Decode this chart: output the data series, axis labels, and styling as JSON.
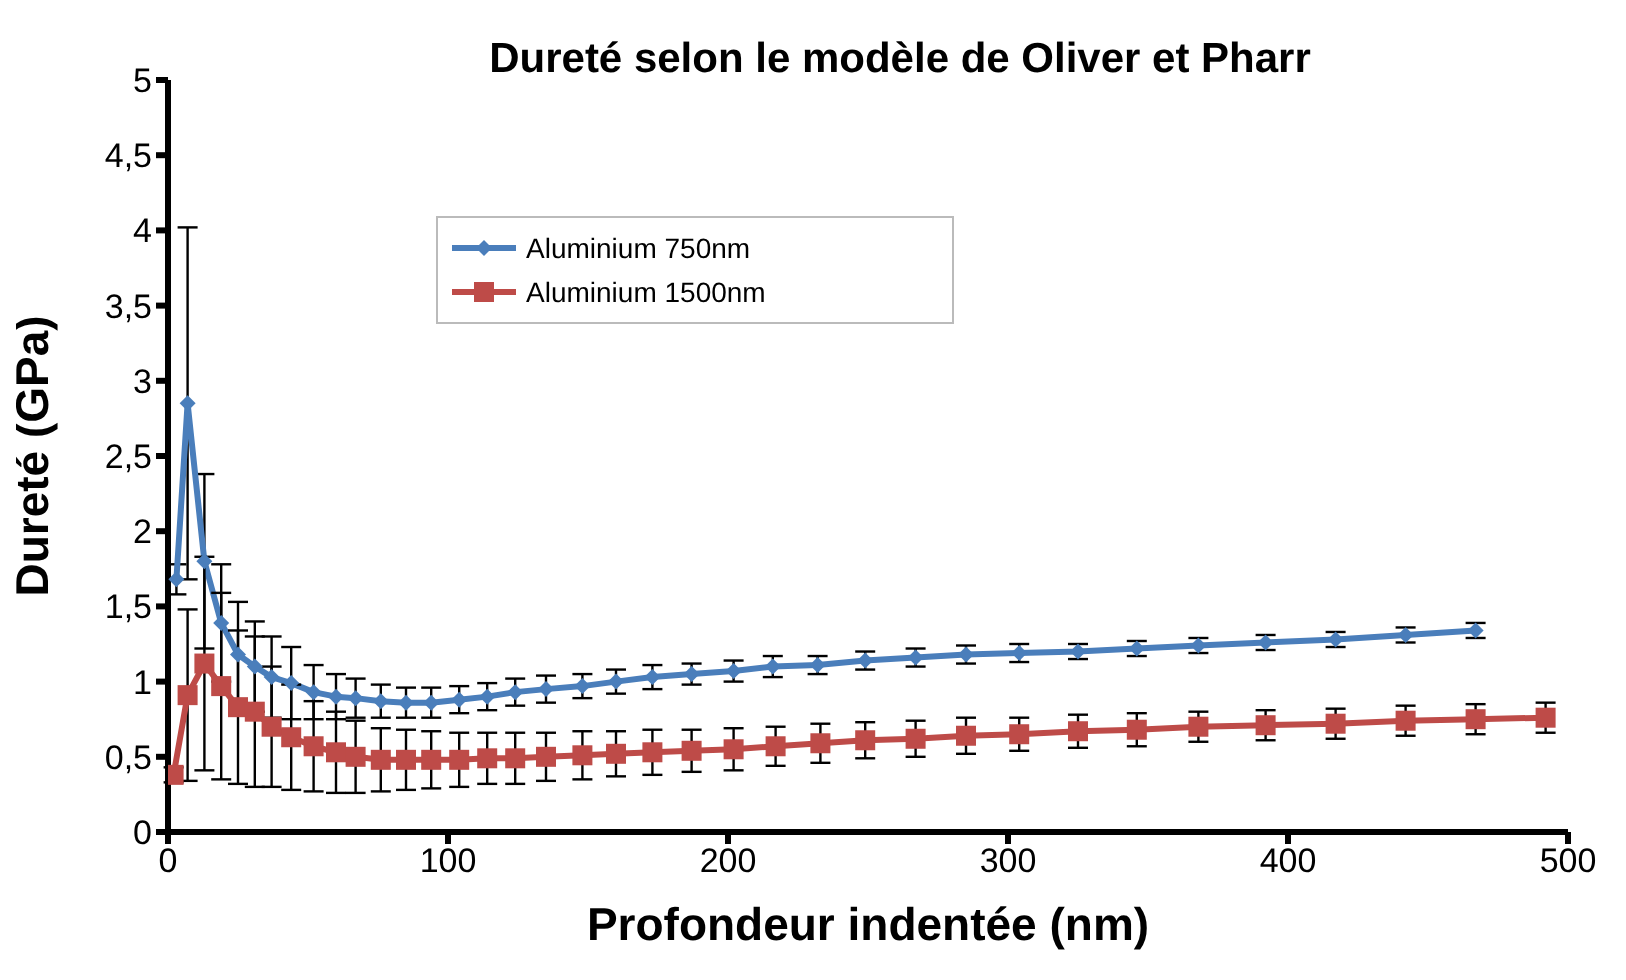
{
  "chart_data": {
    "type": "line",
    "title": "Dureté selon le modèle de Oliver et Pharr",
    "xlabel": "Profondeur indentée (nm)",
    "ylabel": "Dureté (GPa)",
    "xlim": [
      0,
      500
    ],
    "xticks": [
      0,
      100,
      200,
      300,
      400,
      500
    ],
    "ylim": [
      0,
      5
    ],
    "yticks": [
      0,
      {
        "value": 0.5,
        "label": "0,5"
      },
      1,
      {
        "value": 1.5,
        "label": "1,5"
      },
      2,
      {
        "value": 2.5,
        "label": "2,5"
      },
      3,
      {
        "value": 3.5,
        "label": "3,5"
      },
      4,
      {
        "value": 4.5,
        "label": "4,5"
      },
      5
    ],
    "grid": false,
    "legend": "top left",
    "line_style": "solid",
    "series": [
      {
        "name": "Aluminium 750nm",
        "color": "#4a7ebb",
        "marker": "diamond",
        "x": [
          3,
          7,
          13,
          19,
          25,
          31,
          37,
          44,
          52,
          60,
          67,
          76,
          85,
          94,
          104,
          114,
          124,
          135,
          148,
          160,
          173,
          187,
          202,
          216,
          232,
          249,
          267,
          285,
          304,
          325,
          346,
          368,
          392,
          417,
          442,
          467
        ],
        "values": [
          1.68,
          2.85,
          1.8,
          1.39,
          1.18,
          1.1,
          1.03,
          0.99,
          0.93,
          0.9,
          0.89,
          0.87,
          0.86,
          0.86,
          0.88,
          0.9,
          0.93,
          0.95,
          0.97,
          1.0,
          1.03,
          1.05,
          1.07,
          1.1,
          1.11,
          1.14,
          1.16,
          1.18,
          1.19,
          1.2,
          1.22,
          1.24,
          1.26,
          1.28,
          1.31,
          1.34
        ],
        "errors": [
          0.1,
          1.17,
          0.58,
          0.39,
          0.35,
          0.3,
          0.27,
          0.24,
          0.18,
          0.15,
          0.13,
          0.11,
          0.1,
          0.1,
          0.09,
          0.09,
          0.09,
          0.09,
          0.08,
          0.08,
          0.08,
          0.07,
          0.07,
          0.07,
          0.06,
          0.06,
          0.06,
          0.06,
          0.06,
          0.05,
          0.05,
          0.05,
          0.05,
          0.05,
          0.05,
          0.05
        ]
      },
      {
        "name": "Aluminium 1500nm",
        "color": "#be4b48",
        "marker": "square",
        "x": [
          2,
          7,
          13,
          19,
          25,
          31,
          37,
          44,
          52,
          60,
          67,
          76,
          85,
          94,
          104,
          114,
          124,
          135,
          148,
          160,
          173,
          187,
          202,
          217,
          233,
          249,
          267,
          285,
          304,
          325,
          346,
          368,
          392,
          417,
          442,
          467,
          492
        ],
        "values": [
          0.38,
          0.91,
          1.12,
          0.97,
          0.83,
          0.8,
          0.7,
          0.63,
          0.57,
          0.53,
          0.5,
          0.48,
          0.48,
          0.48,
          0.48,
          0.49,
          0.49,
          0.5,
          0.51,
          0.52,
          0.53,
          0.54,
          0.55,
          0.57,
          0.59,
          0.61,
          0.62,
          0.64,
          0.65,
          0.67,
          0.68,
          0.7,
          0.71,
          0.72,
          0.74,
          0.75,
          0.76
        ],
        "errors": [
          0.05,
          0.57,
          0.71,
          0.62,
          0.51,
          0.5,
          0.4,
          0.35,
          0.3,
          0.27,
          0.24,
          0.21,
          0.2,
          0.19,
          0.18,
          0.17,
          0.17,
          0.16,
          0.16,
          0.15,
          0.15,
          0.14,
          0.14,
          0.13,
          0.13,
          0.12,
          0.12,
          0.12,
          0.11,
          0.11,
          0.11,
          0.1,
          0.1,
          0.1,
          0.1,
          0.1,
          0.1
        ]
      }
    ]
  }
}
